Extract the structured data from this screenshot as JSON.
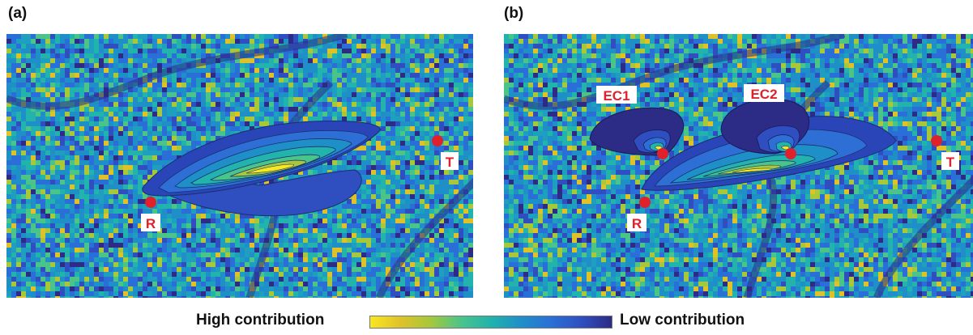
{
  "panels": [
    {
      "label": "(a)",
      "points": [
        {
          "text": "R"
        },
        {
          "text": "T"
        }
      ]
    },
    {
      "label": "(b)",
      "points": [
        {
          "text": "R"
        },
        {
          "text": "T"
        },
        {
          "text": "EC1"
        },
        {
          "text": "EC2"
        }
      ]
    }
  ],
  "legend": {
    "high_label": "High contribution",
    "low_label": "Low contribution"
  },
  "colors": {
    "colormap": [
      "#f9e721",
      "#dfc22a",
      "#a6c83a",
      "#4bc48a",
      "#21b3ac",
      "#1f8fc8",
      "#2a6fd7",
      "#2f4fc0",
      "#2c2b86"
    ],
    "marker": "#e0202a",
    "label_box": "#ffffff"
  }
}
